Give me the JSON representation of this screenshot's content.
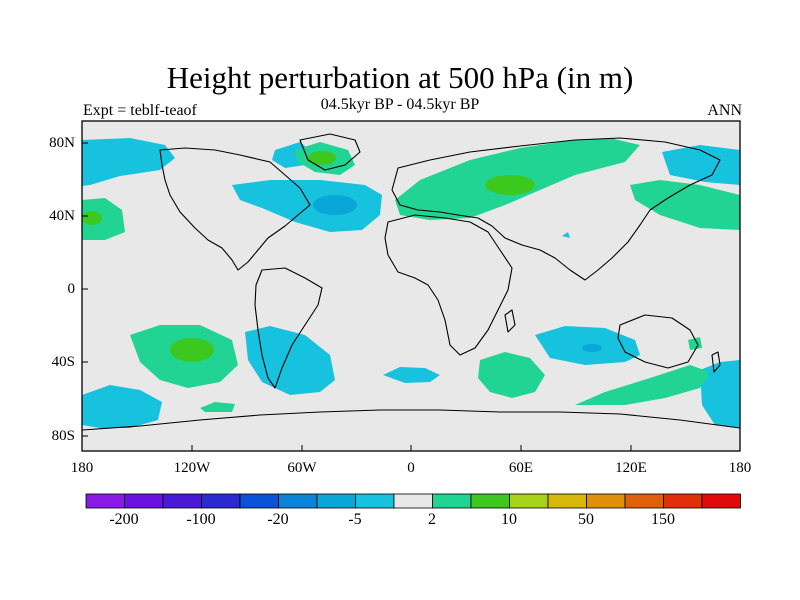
{
  "title": "Height perturbation at 500 hPa (in m)",
  "subtitle": "04.5kyr BP - 04.5kyr BP",
  "left_label": "Expt = teblf-teaof",
  "right_label": "ANN",
  "lat_ticks": [
    "80N",
    "40N",
    "0",
    "40S",
    "80S"
  ],
  "lon_ticks": [
    "180",
    "120W",
    "60W",
    "0",
    "60E",
    "120E",
    "180"
  ],
  "colorbar": {
    "colors": [
      "#8a1ae6",
      "#6a12e0",
      "#4a1ad6",
      "#2a2ad0",
      "#0a52d6",
      "#0a84da",
      "#0aa6d8",
      "#16c2de",
      "#e8e8e8",
      "#22d494",
      "#3cc81e",
      "#a8d21a",
      "#d6b80a",
      "#e0900a",
      "#e0600a",
      "#e0300a",
      "#e00a0a"
    ],
    "labels": [
      "-200",
      "-100",
      "-20",
      "-5",
      "2",
      "10",
      "50",
      "150"
    ]
  },
  "palette": {
    "ocean_bg": "#e8e8e8",
    "neg_light": "#16c2de",
    "neg_mid": "#0aa6d8",
    "pos_light": "#22d494",
    "pos_mid": "#3cc81e"
  }
}
